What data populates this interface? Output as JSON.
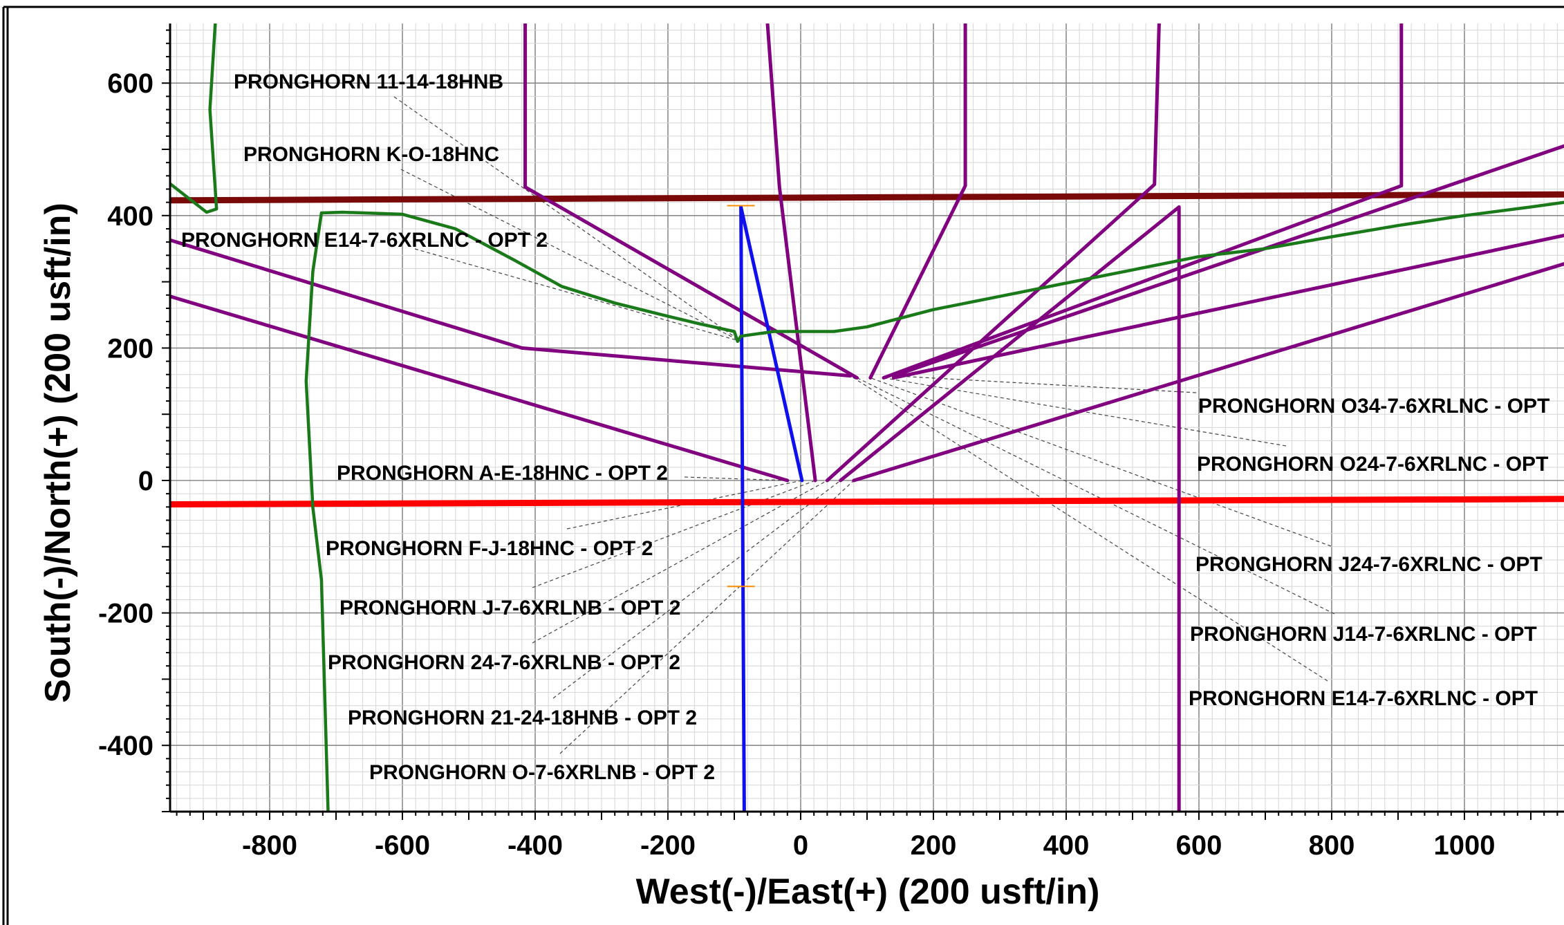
{
  "chart_data": {
    "type": "line",
    "title": "",
    "xlabel": "West(-)/East(+) (200 usft/in)",
    "ylabel": "South(-)/North(+) (200 usft/in)",
    "xlim": [
      -950,
      1150
    ],
    "ylim": [
      -500,
      690
    ],
    "x_ticks": [
      -800,
      -600,
      -400,
      -200,
      0,
      200,
      400,
      600,
      800,
      1000
    ],
    "y_ticks": [
      -400,
      -200,
      0,
      200,
      400,
      600
    ],
    "x_tick_labels": [
      "-800",
      "-600",
      "-400",
      "-200",
      "0",
      "200",
      "400",
      "600",
      "800",
      "1000"
    ],
    "y_tick_labels": [
      "-400",
      "-200",
      "0",
      "200",
      "400",
      "600"
    ],
    "grid": true,
    "colors": {
      "purple": "#800080",
      "green": "#1a7a1a",
      "blue": "#1010ee",
      "red": "#ff0000",
      "darkred": "#7a0a0a",
      "orange": "#ff8c00"
    },
    "boundary_lines": [
      {
        "color": "#7a0a0a",
        "points": [
          [
            -950,
            423
          ],
          [
            1150,
            432
          ]
        ]
      },
      {
        "color": "#ff0000",
        "points": [
          [
            -950,
            -36
          ],
          [
            1150,
            -28
          ]
        ]
      }
    ],
    "series": [
      {
        "color": "#800080",
        "points": [
          [
            -415,
            690
          ],
          [
            -415,
            443
          ],
          [
            85,
            155
          ]
        ]
      },
      {
        "color": "#800080",
        "points": [
          [
            -950,
            363
          ],
          [
            -420,
            200
          ],
          [
            75,
            158
          ]
        ]
      },
      {
        "color": "#800080",
        "points": [
          [
            -950,
            278
          ],
          [
            -20,
            0
          ]
        ]
      },
      {
        "color": "#800080",
        "points": [
          [
            -50,
            690
          ],
          [
            -32,
            443
          ],
          [
            22,
            0
          ]
        ]
      },
      {
        "color": "#800080",
        "points": [
          [
            248,
            690
          ],
          [
            248,
            445
          ],
          [
            105,
            155
          ]
        ]
      },
      {
        "color": "#800080",
        "points": [
          [
            540,
            690
          ],
          [
            533,
            447
          ],
          [
            40,
            0
          ]
        ]
      },
      {
        "color": "#800080",
        "points": [
          [
            905,
            690
          ],
          [
            905,
            445
          ],
          [
            125,
            155
          ]
        ]
      },
      {
        "color": "#800080",
        "points": [
          [
            1150,
            505
          ],
          [
            140,
            158
          ]
        ]
      },
      {
        "color": "#800080",
        "points": [
          [
            1150,
            370
          ],
          [
            140,
            155
          ]
        ]
      },
      {
        "color": "#800080",
        "points": [
          [
            570,
            -500
          ],
          [
            570,
            413
          ],
          [
            60,
            0
          ]
        ]
      },
      {
        "color": "#800080",
        "points": [
          [
            1150,
            327
          ],
          [
            80,
            0
          ]
        ]
      },
      {
        "color": "#1010ee",
        "points": [
          [
            -85,
            -500
          ],
          [
            -90,
            413
          ],
          [
            2,
            0
          ]
        ]
      },
      {
        "color": "#1a7a1a",
        "points": [
          [
            -882,
            690
          ],
          [
            -890,
            560
          ],
          [
            -880,
            410
          ],
          [
            -895,
            405
          ],
          [
            -950,
            448
          ]
        ]
      },
      {
        "color": "#1a7a1a",
        "points": [
          [
            -712,
            -500
          ],
          [
            -722,
            -150
          ],
          [
            -735,
            -40
          ],
          [
            -745,
            150
          ],
          [
            -735,
            315
          ],
          [
            -722,
            404
          ],
          [
            -690,
            405
          ],
          [
            -600,
            402
          ],
          [
            -520,
            380
          ],
          [
            -430,
            332
          ],
          [
            -360,
            293
          ],
          [
            -280,
            268
          ],
          [
            -200,
            248
          ],
          [
            -150,
            236
          ],
          [
            -100,
            225
          ],
          [
            -95,
            210
          ],
          [
            -90,
            218
          ],
          [
            -40,
            225
          ],
          [
            50,
            225
          ],
          [
            100,
            232
          ],
          [
            200,
            258
          ],
          [
            300,
            278
          ],
          [
            400,
            298
          ],
          [
            500,
            318
          ],
          [
            600,
            338
          ],
          [
            700,
            350
          ],
          [
            800,
            368
          ],
          [
            900,
            385
          ],
          [
            1000,
            400
          ],
          [
            1100,
            413
          ],
          [
            1150,
            420
          ]
        ]
      }
    ],
    "markers": [
      {
        "x": -90,
        "y": 415
      },
      {
        "x": -90,
        "y": -160
      }
    ],
    "annotations": [
      {
        "text": "PRONGHORN 11-14-18HNB",
        "leader_to": [
          -90,
          210
        ]
      },
      {
        "text": "PRONGHORN K-O-18HNC",
        "leader_to": [
          -90,
          210
        ]
      },
      {
        "text": "PRONGHORN E14-7-6XRLNC - OPT 2",
        "leader_to": [
          -90,
          210
        ]
      },
      {
        "text": "PRONGHORN O34-7-6XRLNC - OPT",
        "leader_to": [
          140,
          158
        ]
      },
      {
        "text": "PRONGHORN O24-7-6XRLNC - OPT",
        "leader_to": [
          125,
          155
        ]
      },
      {
        "text": "PRONGHORN A-E-18HNC - OPT 2",
        "leader_to": [
          -20,
          0
        ]
      },
      {
        "text": "PRONGHORN F-J-18HNC - OPT 2",
        "leader_to": [
          2,
          0
        ]
      },
      {
        "text": "PRONGHORN J24-7-6XRLNC - OPT",
        "leader_to": [
          105,
          155
        ]
      },
      {
        "text": "PRONGHORN J-7-6XRLNB - OPT 2",
        "leader_to": [
          22,
          0
        ]
      },
      {
        "text": "PRONGHORN J14-7-6XRLNC - OPT",
        "leader_to": [
          85,
          155
        ]
      },
      {
        "text": "PRONGHORN 24-7-6XRLNB - OPT 2",
        "leader_to": [
          40,
          0
        ]
      },
      {
        "text": "PRONGHORN E14-7-6XRLNC - OPT",
        "leader_to": [
          75,
          158
        ]
      },
      {
        "text": "PRONGHORN 21-24-18HNB - OPT 2",
        "leader_to": [
          60,
          0
        ]
      },
      {
        "text": "PRONGHORN O-7-6XRLNB - OPT 2",
        "leader_to": [
          80,
          0
        ]
      }
    ]
  }
}
